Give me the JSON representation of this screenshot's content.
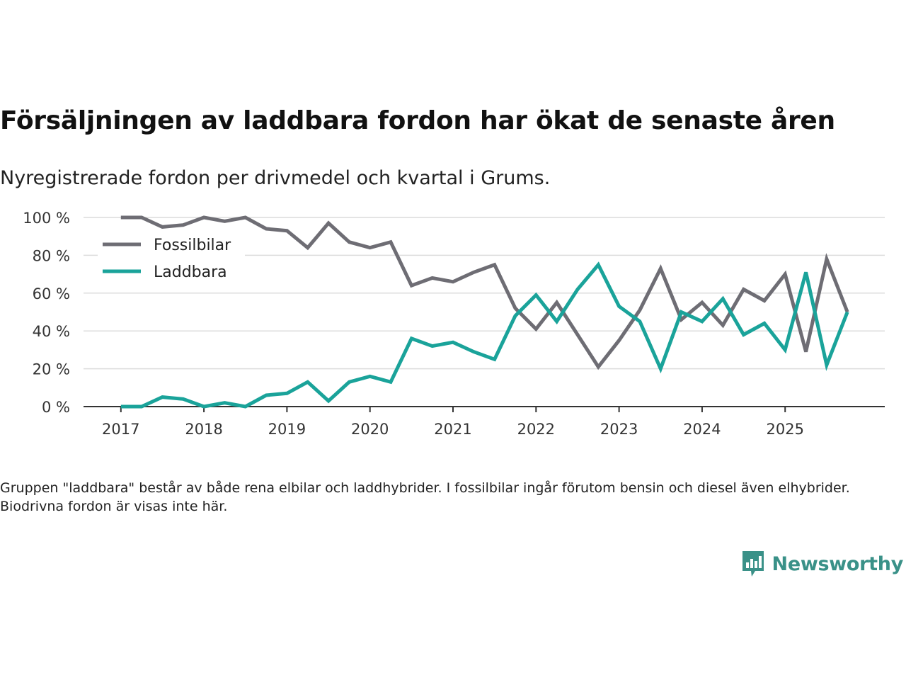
{
  "title": "Försäljningen av laddbara fordon har ökat de senaste åren",
  "subtitle": "Nyregistrerade fordon per drivmedel och kvartal i Grums.",
  "footnote": "Gruppen \"laddbara\" består av både rena elbilar och laddhybrider. I fossilbilar ingår förutom bensin och diesel även elhybrider. Biodrivna fordon är visas inte här.",
  "brand": {
    "name": "Newsworthy",
    "icon": "newsworthy-logo-icon",
    "color": "#3a9188"
  },
  "chart_data": {
    "type": "line",
    "title": "Försäljningen av laddbara fordon har ökat de senaste åren",
    "xlabel": "",
    "ylabel": "",
    "ylim": [
      0,
      100
    ],
    "yticks": [
      0,
      20,
      40,
      60,
      80,
      100
    ],
    "ytick_labels": [
      "0 %",
      "20 %",
      "40 %",
      "60 %",
      "80 %",
      "100 %"
    ],
    "xticks": [
      2017,
      2018,
      2019,
      2020,
      2021,
      2022,
      2023,
      2024,
      2025
    ],
    "xtick_labels": [
      "2017",
      "2018",
      "2019",
      "2020",
      "2021",
      "2022",
      "2023",
      "2024",
      "2025"
    ],
    "grid": true,
    "legend_position": "top-left",
    "x": [
      2017.0,
      2017.25,
      2017.5,
      2017.75,
      2018.0,
      2018.25,
      2018.5,
      2018.75,
      2019.0,
      2019.25,
      2019.5,
      2019.75,
      2020.0,
      2020.25,
      2020.5,
      2020.75,
      2021.0,
      2021.25,
      2021.5,
      2021.75,
      2022.0,
      2022.25,
      2022.5,
      2022.75,
      2023.0,
      2023.25,
      2023.5,
      2023.75,
      2024.0,
      2024.25,
      2024.5,
      2024.75,
      2025.0,
      2025.25,
      2025.5,
      2025.75
    ],
    "series": [
      {
        "name": "Fossilbilar",
        "color": "#6e6d74",
        "values": [
          100,
          100,
          95,
          96,
          100,
          98,
          100,
          94,
          93,
          84,
          97,
          87,
          84,
          87,
          64,
          68,
          66,
          71,
          75,
          52,
          41,
          55,
          38,
          21,
          35,
          51,
          73,
          46,
          55,
          43,
          62,
          56,
          70,
          29,
          78,
          50
        ]
      },
      {
        "name": "Laddbara",
        "color": "#1aa39a",
        "values": [
          0,
          0,
          5,
          4,
          0,
          2,
          0,
          6,
          7,
          13,
          3,
          13,
          16,
          13,
          36,
          32,
          34,
          29,
          25,
          48,
          59,
          45,
          62,
          75,
          53,
          45,
          20,
          50,
          45,
          57,
          38,
          44,
          30,
          71,
          22,
          50
        ]
      }
    ]
  }
}
